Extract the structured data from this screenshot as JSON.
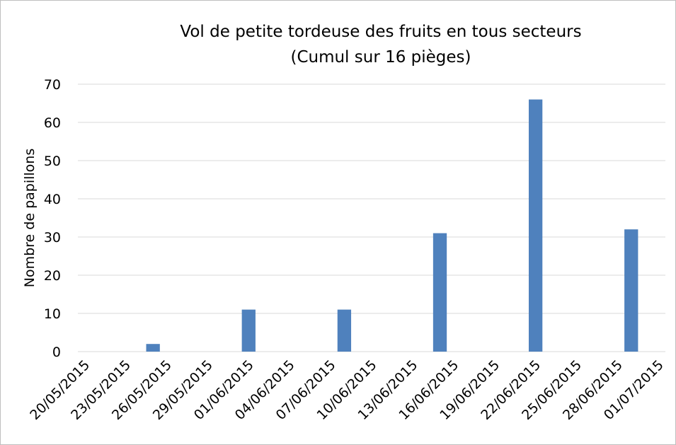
{
  "chart_data": {
    "type": "bar",
    "title": "Vol de petite tordeuse des fruits en tous secteurs",
    "subtitle": "(Cumul sur 16 pièges)",
    "y_label": "Nombre de papillons",
    "x": [
      "25/05/2015",
      "01/06/2015",
      "08/06/2015",
      "15/06/2015",
      "22/06/2015",
      "29/06/2015"
    ],
    "values": [
      2,
      11,
      11,
      31,
      66,
      32
    ],
    "color": "#4f81bd",
    "xlim": [
      "20/05/2015",
      "01/07/2015"
    ],
    "xticks": [
      "20/05/2015",
      "23/05/2015",
      "26/05/2015",
      "29/05/2015",
      "01/06/2015",
      "04/06/2015",
      "07/06/2015",
      "10/06/2015",
      "13/06/2015",
      "16/06/2015",
      "19/06/2015",
      "22/06/2015",
      "25/06/2015",
      "28/06/2015",
      "01/07/2015"
    ],
    "ylim": [
      0,
      70
    ],
    "yticks": [
      0,
      10,
      20,
      30,
      40,
      50,
      60,
      70
    ],
    "grid": true
  }
}
